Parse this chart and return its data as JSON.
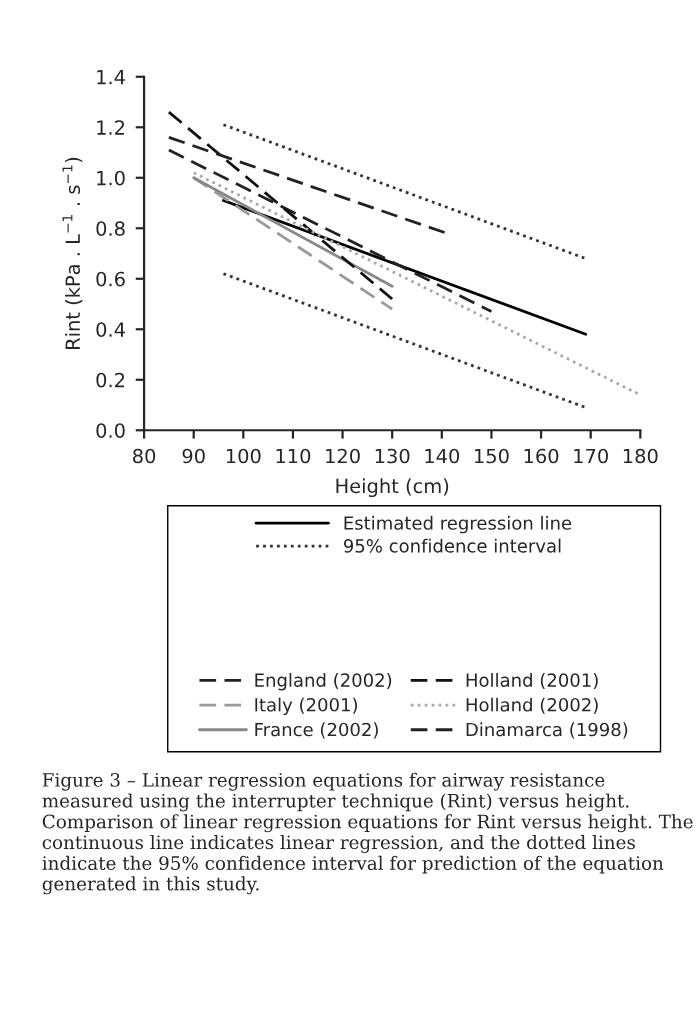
{
  "chart_data": {
    "type": "line",
    "xlabel": "Height (cm)",
    "ylabel": "Rint (kPa . L$^{−1}$ . s$^{−1}$)",
    "xlim": [
      80,
      180
    ],
    "xticks": [
      80,
      90,
      100,
      110,
      120,
      130,
      140,
      150,
      160,
      170,
      180
    ],
    "ylim": [
      0,
      1.4
    ],
    "yticks": [
      {
        "value": 0,
        "label": "0.0"
      },
      {
        "value": 0.2,
        "label": "0.2"
      },
      {
        "value": 0.4,
        "label": "0.4"
      },
      {
        "value": 0.6,
        "label": "0.6"
      },
      {
        "value": 0.8,
        "label": "0.8"
      },
      {
        "value": 1.0,
        "label": "1.0"
      },
      {
        "value": 1.2,
        "label": "1.2"
      },
      {
        "value": 1.4,
        "label": "1.4"
      }
    ],
    "grid": false,
    "legend": "bottom",
    "marker": "none",
    "series": [
      {
        "name": "Estimated regression line",
        "color": "#000000",
        "line_style": "solid",
        "x": [
          96,
          169
        ],
        "values": [
          0.91,
          0.38
        ]
      },
      {
        "name": "95% confidence interval",
        "color": "#333333",
        "line_style": "dotted",
        "x": [
          96,
          169
        ],
        "values": [
          1.21,
          0.68
        ]
      },
      {
        "color": "#333333",
        "line_style": "dotted",
        "x": [
          96,
          169
        ],
        "values": [
          0.62,
          0.09
        ]
      },
      {
        "name": "England (2002)",
        "color": "#222222",
        "line_style": "dashed",
        "x": [
          85,
          150
        ],
        "values": [
          1.11,
          0.47
        ]
      },
      {
        "name": "Italy (2001)",
        "color": "#999999",
        "line_style": "dashed",
        "x": [
          90,
          130
        ],
        "values": [
          1.0,
          0.48
        ]
      },
      {
        "name": "France (2002)",
        "color": "#888888",
        "line_style": "solid",
        "x": [
          90,
          130
        ],
        "values": [
          1.0,
          0.57
        ]
      },
      {
        "name": "Holland (2001)",
        "color": "#111111",
        "line_style": "dashed",
        "x": [
          85,
          130
        ],
        "values": [
          1.26,
          0.52
        ]
      },
      {
        "name": "Holland (2002)",
        "color": "#aaaaaa",
        "line_style": "dotted",
        "x": [
          90,
          180
        ],
        "values": [
          1.02,
          0.14
        ]
      },
      {
        "name": "Dinamarca (1998)",
        "color": "#222222",
        "line_style": "dashed",
        "x": [
          85,
          141
        ],
        "values": [
          1.16,
          0.78
        ]
      }
    ],
    "annotations": [
      "Figure 3 – Linear regression equations for airway resistance measured using the interrupter technique (Rint) versus height. Comparison of linear regression equations for Rint versus height. The continuous line indicates linear regression, and the dotted lines indicate the 95% confidence interval for prediction of the equation generated in this study."
    ]
  }
}
